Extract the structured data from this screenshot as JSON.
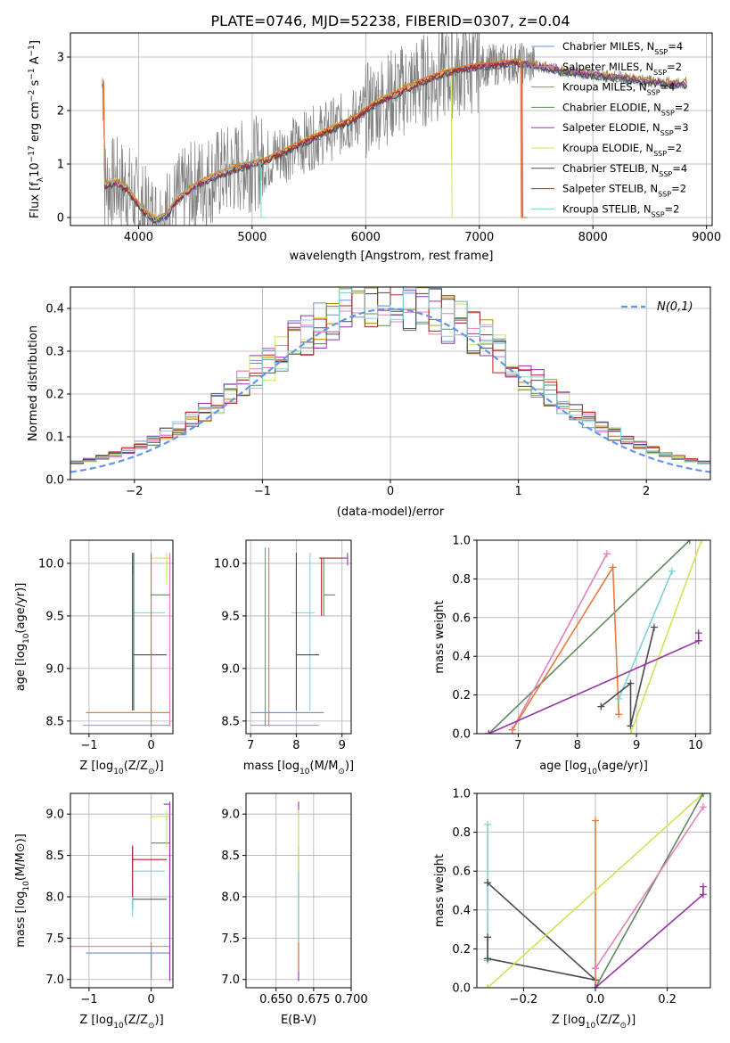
{
  "figure": {
    "title": "PLATE=0746, MJD=52238, FIBERID=0307, z=0.04"
  },
  "colors": {
    "observed": "#808080",
    "gaussian": "#6495ed"
  },
  "models": [
    {
      "label": "Chabrier MILES, N",
      "n": "=4",
      "color": "#6b8fd6"
    },
    {
      "label": "Salpeter MILES, N",
      "n": "=2",
      "color": "#e47fbf"
    },
    {
      "label": "Kroupa MILES, N",
      "n": "=4",
      "color": "#b8860b"
    },
    {
      "label": "Chabrier ELODIE, N",
      "n": "=2",
      "color": "#5c8a5c"
    },
    {
      "label": "Salpeter ELODIE, N",
      "n": "=3",
      "color": "#9932a8"
    },
    {
      "label": "Kroupa ELODIE, N",
      "n": "=2",
      "color": "#d4e157"
    },
    {
      "label": "Chabrier STELIB, N",
      "n": "=4",
      "color": "#4a4a4a"
    },
    {
      "label": "Salpeter STELIB, N",
      "n": "=2",
      "color": "#b22222"
    },
    {
      "label": "Kroupa STELIB, N",
      "n": "=2",
      "color": "#7fd1d6"
    }
  ],
  "nssp_sub": "SSP",
  "chart_data": [
    {
      "id": "spectrum",
      "type": "line",
      "xlabel": "wavelength [Angstrom, rest frame]",
      "ylabel": "Flux [f",
      "ylabel_parts": [
        "Flux [f",
        "λ",
        "10",
        "−17",
        " erg cm",
        "−2",
        " s",
        "−1",
        " A",
        "−1",
        "]"
      ],
      "xlim": [
        3400,
        9050
      ],
      "ylim": [
        -0.15,
        3.45
      ],
      "xticks": [
        4000,
        5000,
        6000,
        7000,
        8000,
        9000
      ],
      "yticks": [
        0,
        1,
        2,
        3
      ],
      "model_curve": {
        "x": [
          3700,
          3800,
          3900,
          3960,
          4050,
          4150,
          4250,
          4350,
          4500,
          4700,
          4900,
          5100,
          5300,
          5500,
          5700,
          5900,
          6100,
          6300,
          6500,
          6700,
          6900,
          7100,
          7300,
          7500,
          7700,
          7900,
          8100,
          8300,
          8500,
          8700,
          8830
        ],
        "y": [
          0.6,
          0.65,
          0.55,
          0.35,
          0.1,
          -0.05,
          0.05,
          0.35,
          0.6,
          0.8,
          0.95,
          1.05,
          1.25,
          1.45,
          1.65,
          1.85,
          2.15,
          2.35,
          2.55,
          2.7,
          2.8,
          2.85,
          2.9,
          2.85,
          2.75,
          2.7,
          2.65,
          2.6,
          2.55,
          2.5,
          2.5
        ]
      }
    },
    {
      "id": "residuals",
      "type": "bar",
      "xlabel": "(data-model)/error",
      "ylabel": "Normed distribution",
      "xlim": [
        -2.5,
        2.5
      ],
      "ylim": [
        0,
        0.45
      ],
      "xticks": [
        -2,
        -1,
        0,
        1,
        2
      ],
      "yticks": [
        0.0,
        0.1,
        0.2,
        0.3,
        0.4
      ],
      "legend": "N(0,1)",
      "legend_position": "top-right",
      "bin_width": 0.1
    },
    {
      "id": "age-vs-Z",
      "type": "scatter",
      "xlabel": "Z [log",
      "xlabel_parts": [
        "Z [log",
        "10",
        "(Z/Z",
        "⊙",
        ")]"
      ],
      "ylabel_parts": [
        "age  [log",
        "10",
        "(age/yr)]"
      ],
      "xlim": [
        -1.3,
        0.35
      ],
      "ylim": [
        8.38,
        10.22
      ],
      "xticks": [
        -1,
        0
      ],
      "yticks": [
        8.5,
        9.0,
        9.5,
        10.0
      ]
    },
    {
      "id": "age-vs-mass",
      "type": "scatter",
      "xlabel_parts": [
        "mass [log",
        "10",
        "(M/M",
        "⊙",
        ")]"
      ],
      "xlim": [
        6.9,
        9.2
      ],
      "ylim": [
        8.38,
        10.22
      ],
      "xticks": [
        7,
        8,
        9
      ],
      "yticks": [
        8.5,
        9.0,
        9.5,
        10.0
      ]
    },
    {
      "id": "massweight-vs-age",
      "type": "line",
      "xlabel_parts": [
        "age  [log",
        "10",
        "(age/yr)]"
      ],
      "ylabel": "mass weight",
      "xlim": [
        6.3,
        10.25
      ],
      "ylim": [
        0,
        1
      ],
      "xticks": [
        7,
        8,
        9,
        10
      ],
      "yticks": [
        0.0,
        0.2,
        0.4,
        0.6,
        0.8,
        1.0
      ]
    },
    {
      "id": "mass-vs-Z",
      "type": "scatter",
      "xlabel_parts": [
        "Z [log",
        "10",
        "(Z/Z",
        "⊙",
        ")]"
      ],
      "ylabel_parts": [
        "mass [log",
        "10",
        "(M/M",
        "⊙",
        ")]"
      ],
      "xlim": [
        -1.3,
        0.35
      ],
      "ylim": [
        6.9,
        9.25
      ],
      "xticks": [
        -1,
        0
      ],
      "yticks": [
        7.0,
        7.5,
        8.0,
        8.5,
        9.0
      ]
    },
    {
      "id": "mass-vs-ebv",
      "type": "scatter",
      "xlabel": "E(B-V)",
      "xlim": [
        0.63,
        0.7
      ],
      "ylim": [
        6.9,
        9.25
      ],
      "xticks": [
        0.65,
        0.675,
        0.7
      ],
      "xtick_labels": [
        "0.650",
        "0.675",
        "0.700"
      ],
      "yticks": [
        7.0,
        7.5,
        8.0,
        8.5,
        9.0
      ]
    },
    {
      "id": "massweight-vs-Z",
      "type": "line",
      "xlabel_parts": [
        "Z [log",
        "10",
        "(Z/Z",
        "⊙",
        ")]"
      ],
      "ylabel": "mass weight",
      "xlim": [
        -0.33,
        0.32
      ],
      "ylim": [
        0,
        1
      ],
      "xticks": [
        -0.2,
        0.0,
        0.2
      ],
      "yticks": [
        0.0,
        0.2,
        0.4,
        0.6,
        0.8,
        1.0
      ]
    }
  ]
}
